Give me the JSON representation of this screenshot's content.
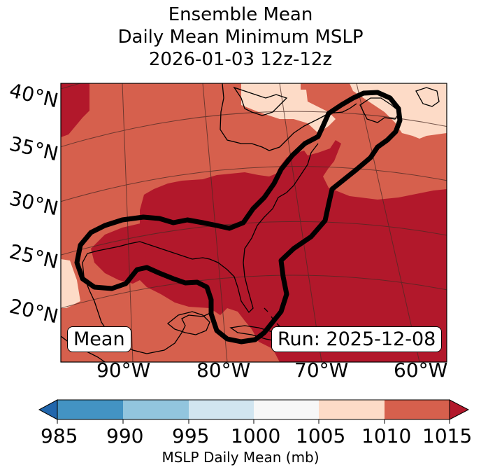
{
  "title": {
    "line1": "Ensemble Mean",
    "line2": "Daily Mean Minimum MSLP",
    "line3": "2026-01-03 12z-12z"
  },
  "map": {
    "lat_labels": [
      "40°N",
      "35°N",
      "30°N",
      "25°N",
      "20°N"
    ],
    "lon_labels": [
      "90°W",
      "80°W",
      "70°W",
      "60°W"
    ],
    "mean_badge": "Mean",
    "run_badge": "Run: 2025-12-08",
    "colors": {
      "ocean_1010_1015": "#d6604d",
      "above_1015": "#b2182b",
      "band_1005_1010": "#fddbc7",
      "contour": "#000000",
      "coast": "#000000"
    }
  },
  "colorbar": {
    "ticks": [
      "985",
      "990",
      "995",
      "1000",
      "1005",
      "1010",
      "1015"
    ],
    "label": "MSLP Daily Mean (mb)",
    "colors": [
      "#2166ac",
      "#4393c3",
      "#92c5de",
      "#d1e5f0",
      "#f7f7f7",
      "#fddbc7",
      "#d6604d",
      "#b2182b"
    ]
  }
}
